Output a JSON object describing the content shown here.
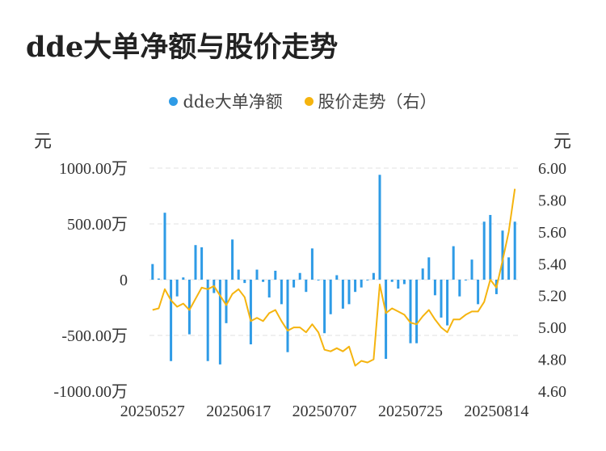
{
  "title": "dde大单净额与股价走势",
  "colors": {
    "bar": "#2e9be6",
    "line": "#f5b40f",
    "grid": "#e2e2e2"
  },
  "chart_data": {
    "type": "bar+line",
    "legend": [
      {
        "name": "dde大单净额",
        "color": "#2e9be6",
        "marker": "dot"
      },
      {
        "name": "股价走势（右）",
        "color": "#f5b40f",
        "marker": "dot"
      }
    ],
    "left_unit": "元",
    "right_unit": "元",
    "left_ticks": [
      "1000.00万",
      "500.00万",
      "0",
      "-500.00万",
      "-1000.00万"
    ],
    "left_tick_values": [
      1000,
      500,
      0,
      -500,
      -1000
    ],
    "right_ticks": [
      "6.00",
      "5.80",
      "5.60",
      "5.40",
      "5.20",
      "5.00",
      "4.80",
      "4.60"
    ],
    "right_tick_values": [
      6.0,
      5.8,
      5.6,
      5.4,
      5.2,
      5.0,
      4.8,
      4.6
    ],
    "ylim_left": [
      -1000,
      1000
    ],
    "ylim_right": [
      4.6,
      6.0
    ],
    "x_tick_labels": [
      "20250527",
      "20250617",
      "20250707",
      "20250725",
      "20250814"
    ],
    "x_tick_indices": [
      0,
      14,
      28,
      42,
      56
    ],
    "legend_position": "top-center",
    "grid": true,
    "series": [
      {
        "name": "dde大单净额",
        "axis": "left",
        "type": "bar",
        "values": [
          140,
          10,
          600,
          -730,
          -150,
          20,
          -490,
          310,
          290,
          -730,
          -120,
          -760,
          -390,
          360,
          90,
          -30,
          -580,
          90,
          -20,
          -160,
          80,
          -220,
          -650,
          -70,
          60,
          -110,
          280,
          0,
          -480,
          -310,
          40,
          -260,
          -220,
          -110,
          -70,
          0,
          60,
          940,
          -710,
          -20,
          -80,
          -40,
          -570,
          -570,
          100,
          200,
          -140,
          -340,
          -410,
          300,
          -150,
          0,
          180,
          -220,
          520,
          580,
          -130,
          440,
          200,
          520
        ]
      },
      {
        "name": "股价走势（右）",
        "axis": "right",
        "type": "line",
        "values": [
          5.11,
          5.12,
          5.24,
          5.17,
          5.13,
          5.15,
          5.11,
          5.18,
          5.25,
          5.24,
          5.26,
          5.2,
          5.14,
          5.21,
          5.24,
          5.19,
          5.04,
          5.06,
          5.04,
          5.09,
          5.11,
          5.04,
          4.98,
          5.0,
          5.0,
          4.97,
          5.02,
          4.97,
          4.86,
          4.85,
          4.87,
          4.85,
          4.88,
          4.76,
          4.79,
          4.78,
          4.8,
          5.27,
          5.09,
          5.12,
          5.1,
          5.08,
          5.03,
          5.02,
          5.07,
          5.11,
          5.05,
          5.0,
          4.97,
          5.05,
          5.05,
          5.08,
          5.1,
          5.1,
          5.16,
          5.3,
          5.25,
          5.42,
          5.6,
          5.87
        ]
      }
    ]
  }
}
